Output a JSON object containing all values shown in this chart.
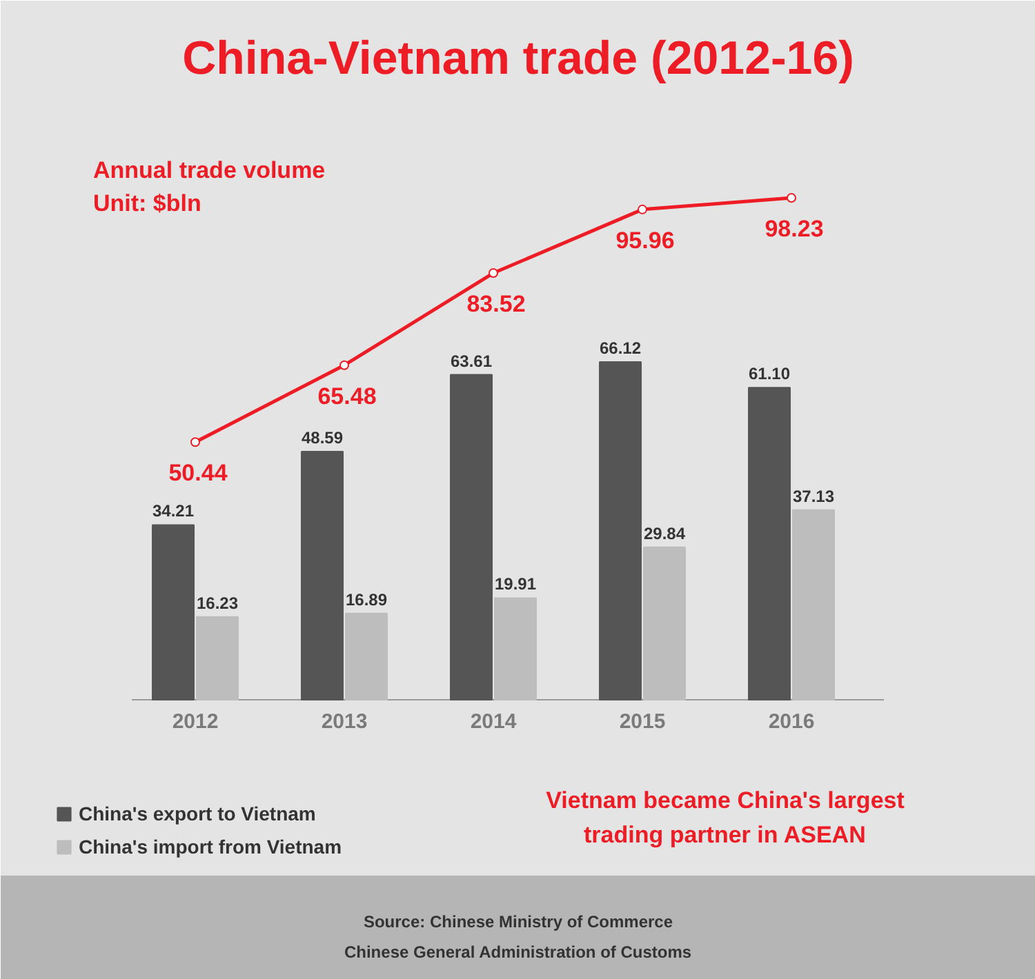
{
  "chart_data": {
    "type": "bar",
    "title": "China-Vietnam trade (2012-16)",
    "categories": [
      "2012",
      "2013",
      "2014",
      "2015",
      "2016"
    ],
    "series": [
      {
        "name": "China's export to Vietnam",
        "color": "#555555",
        "values": [
          34.21,
          48.59,
          63.61,
          66.12,
          61.1
        ],
        "value_labels": [
          "34.21",
          "48.59",
          "63.61",
          "66.12",
          "61.10"
        ]
      },
      {
        "name": "China's import from Vietnam",
        "color": "#bdbdbd",
        "values": [
          16.23,
          16.89,
          19.91,
          29.84,
          37.13
        ],
        "value_labels": [
          "16.23",
          "16.89",
          "19.91",
          "29.84",
          "37.13"
        ]
      },
      {
        "name": "Annual trade volume",
        "type": "line",
        "color": "#ee1c25",
        "values": [
          50.44,
          65.48,
          83.52,
          95.96,
          98.23
        ],
        "value_labels": [
          "50.44",
          "65.48",
          "83.52",
          "95.96",
          "98.23"
        ]
      }
    ],
    "marker": "circle",
    "line_style": "solid",
    "legend": "bottom left",
    "annotations": [
      "Unit: $bln",
      "Vietnam became China's largest trading partner in ASEAN",
      "Source: Chinese Ministry of Commerce",
      "Chinese General Administration of Customs"
    ]
  }
}
